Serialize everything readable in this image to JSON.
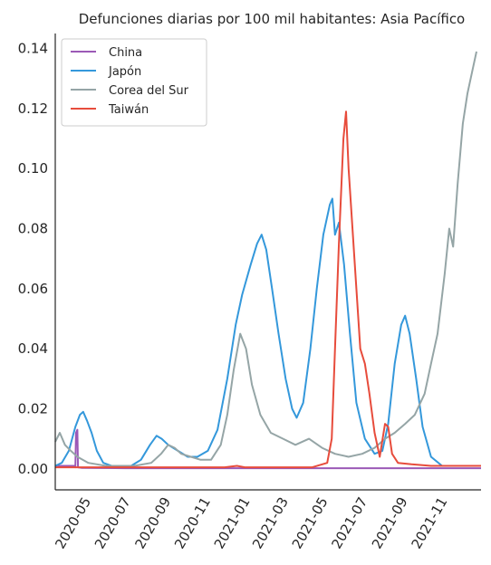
{
  "chart_data": {
    "type": "line",
    "title": "Defunciones diarias por 100 mil habitantes: Asia Pacífico",
    "xlabel": "",
    "ylabel": "",
    "x_axis_type": "date",
    "xlim": [
      "2020-03-15",
      "2021-12-31"
    ],
    "ylim": [
      -0.007,
      0.145
    ],
    "x_ticks": [
      "2020-05",
      "2020-07",
      "2020-09",
      "2020-11",
      "2021-01",
      "2021-03",
      "2021-05",
      "2021-07",
      "2021-09",
      "2021-11"
    ],
    "y_ticks": [
      "0.00",
      "0.02",
      "0.04",
      "0.06",
      "0.08",
      "0.10",
      "0.12",
      "0.14"
    ],
    "grid": false,
    "legend_position": "top-left",
    "series": [
      {
        "name": "China",
        "color": "#9b59b6",
        "points": [
          [
            "2020-03-15",
            0.001
          ],
          [
            "2020-04-13",
            0.001
          ],
          [
            "2020-04-15",
            0.0005
          ],
          [
            "2020-04-16",
            0.012
          ],
          [
            "2020-04-18",
            0.013
          ],
          [
            "2020-04-19",
            0.0005
          ],
          [
            "2020-04-25",
            0.0003
          ],
          [
            "2020-07-01",
            0.0002
          ],
          [
            "2021-01-01",
            0.0002
          ],
          [
            "2021-12-31",
            0.0002
          ]
        ]
      },
      {
        "name": "Japón",
        "color": "#3498db",
        "points": [
          [
            "2020-03-15",
            0.001
          ],
          [
            "2020-03-25",
            0.002
          ],
          [
            "2020-04-05",
            0.006
          ],
          [
            "2020-04-15",
            0.014
          ],
          [
            "2020-04-22",
            0.018
          ],
          [
            "2020-04-27",
            0.019
          ],
          [
            "2020-05-03",
            0.016
          ],
          [
            "2020-05-10",
            0.012
          ],
          [
            "2020-05-18",
            0.006
          ],
          [
            "2020-05-28",
            0.002
          ],
          [
            "2020-06-15",
            0.0006
          ],
          [
            "2020-07-10",
            0.001
          ],
          [
            "2020-07-25",
            0.003
          ],
          [
            "2020-08-08",
            0.008
          ],
          [
            "2020-08-18",
            0.011
          ],
          [
            "2020-08-26",
            0.01
          ],
          [
            "2020-09-05",
            0.008
          ],
          [
            "2020-09-20",
            0.006
          ],
          [
            "2020-10-05",
            0.004
          ],
          [
            "2020-10-20",
            0.004
          ],
          [
            "2020-11-05",
            0.006
          ],
          [
            "2020-11-20",
            0.013
          ],
          [
            "2020-12-05",
            0.03
          ],
          [
            "2020-12-18",
            0.048
          ],
          [
            "2020-12-28",
            0.058
          ],
          [
            "2021-01-10",
            0.068
          ],
          [
            "2021-01-20",
            0.075
          ],
          [
            "2021-01-27",
            0.078
          ],
          [
            "2021-02-03",
            0.073
          ],
          [
            "2021-02-12",
            0.06
          ],
          [
            "2021-02-22",
            0.045
          ],
          [
            "2021-03-05",
            0.03
          ],
          [
            "2021-03-15",
            0.02
          ],
          [
            "2021-03-22",
            0.017
          ],
          [
            "2021-04-01",
            0.022
          ],
          [
            "2021-04-12",
            0.04
          ],
          [
            "2021-04-22",
            0.06
          ],
          [
            "2021-05-02",
            0.078
          ],
          [
            "2021-05-12",
            0.088
          ],
          [
            "2021-05-16",
            0.09
          ],
          [
            "2021-05-20",
            0.078
          ],
          [
            "2021-05-26",
            0.082
          ],
          [
            "2021-06-03",
            0.068
          ],
          [
            "2021-06-12",
            0.045
          ],
          [
            "2021-06-22",
            0.022
          ],
          [
            "2021-07-05",
            0.01
          ],
          [
            "2021-07-20",
            0.005
          ],
          [
            "2021-08-01",
            0.006
          ],
          [
            "2021-08-10",
            0.015
          ],
          [
            "2021-08-20",
            0.035
          ],
          [
            "2021-08-30",
            0.048
          ],
          [
            "2021-09-05",
            0.051
          ],
          [
            "2021-09-12",
            0.045
          ],
          [
            "2021-09-22",
            0.03
          ],
          [
            "2021-10-02",
            0.014
          ],
          [
            "2021-10-15",
            0.004
          ],
          [
            "2021-11-01",
            0.001
          ],
          [
            "2021-12-10",
            0.001
          ],
          [
            "2021-12-31",
            0.001
          ]
        ]
      },
      {
        "name": "Corea del Sur",
        "color": "#95a5a6",
        "points": [
          [
            "2020-03-15",
            0.009
          ],
          [
            "2020-03-22",
            0.012
          ],
          [
            "2020-03-30",
            0.008
          ],
          [
            "2020-04-08",
            0.006
          ],
          [
            "2020-04-18",
            0.004
          ],
          [
            "2020-05-05",
            0.002
          ],
          [
            "2020-06-01",
            0.001
          ],
          [
            "2020-07-15",
            0.001
          ],
          [
            "2020-08-10",
            0.002
          ],
          [
            "2020-08-25",
            0.005
          ],
          [
            "2020-09-05",
            0.008
          ],
          [
            "2020-09-15",
            0.007
          ],
          [
            "2020-09-25",
            0.005
          ],
          [
            "2020-10-10",
            0.004
          ],
          [
            "2020-10-25",
            0.003
          ],
          [
            "2020-11-10",
            0.003
          ],
          [
            "2020-11-25",
            0.008
          ],
          [
            "2020-12-05",
            0.018
          ],
          [
            "2020-12-15",
            0.033
          ],
          [
            "2020-12-25",
            0.045
          ],
          [
            "2021-01-03",
            0.04
          ],
          [
            "2021-01-12",
            0.028
          ],
          [
            "2021-01-25",
            0.018
          ],
          [
            "2021-02-10",
            0.012
          ],
          [
            "2021-03-01",
            0.01
          ],
          [
            "2021-03-20",
            0.008
          ],
          [
            "2021-04-10",
            0.01
          ],
          [
            "2021-04-30",
            0.007
          ],
          [
            "2021-05-20",
            0.005
          ],
          [
            "2021-06-10",
            0.004
          ],
          [
            "2021-07-01",
            0.005
          ],
          [
            "2021-07-20",
            0.007
          ],
          [
            "2021-08-05",
            0.01
          ],
          [
            "2021-08-20",
            0.012
          ],
          [
            "2021-09-05",
            0.015
          ],
          [
            "2021-09-20",
            0.018
          ],
          [
            "2021-10-05",
            0.025
          ],
          [
            "2021-10-15",
            0.035
          ],
          [
            "2021-10-25",
            0.045
          ],
          [
            "2021-11-05",
            0.065
          ],
          [
            "2021-11-12",
            0.08
          ],
          [
            "2021-11-18",
            0.074
          ],
          [
            "2021-11-25",
            0.095
          ],
          [
            "2021-12-03",
            0.115
          ],
          [
            "2021-12-10",
            0.125
          ],
          [
            "2021-12-18",
            0.133
          ],
          [
            "2021-12-24",
            0.139
          ]
        ]
      },
      {
        "name": "Taiwán",
        "color": "#e74c3c",
        "points": [
          [
            "2020-03-15",
            0.0005
          ],
          [
            "2020-12-01",
            0.0005
          ],
          [
            "2020-12-20",
            0.001
          ],
          [
            "2021-01-01",
            0.0005
          ],
          [
            "2021-04-15",
            0.0005
          ],
          [
            "2021-05-08",
            0.002
          ],
          [
            "2021-05-15",
            0.01
          ],
          [
            "2021-05-20",
            0.04
          ],
          [
            "2021-05-26",
            0.075
          ],
          [
            "2021-06-02",
            0.11
          ],
          [
            "2021-06-06",
            0.119
          ],
          [
            "2021-06-10",
            0.1
          ],
          [
            "2021-06-16",
            0.08
          ],
          [
            "2021-06-22",
            0.06
          ],
          [
            "2021-06-28",
            0.04
          ],
          [
            "2021-07-05",
            0.035
          ],
          [
            "2021-07-12",
            0.025
          ],
          [
            "2021-07-20",
            0.012
          ],
          [
            "2021-07-28",
            0.004
          ],
          [
            "2021-08-05",
            0.015
          ],
          [
            "2021-08-10",
            0.014
          ],
          [
            "2021-08-16",
            0.005
          ],
          [
            "2021-08-25",
            0.002
          ],
          [
            "2021-09-15",
            0.0015
          ],
          [
            "2021-10-15",
            0.001
          ],
          [
            "2021-11-15",
            0.001
          ],
          [
            "2021-12-31",
            0.001
          ]
        ]
      }
    ]
  }
}
